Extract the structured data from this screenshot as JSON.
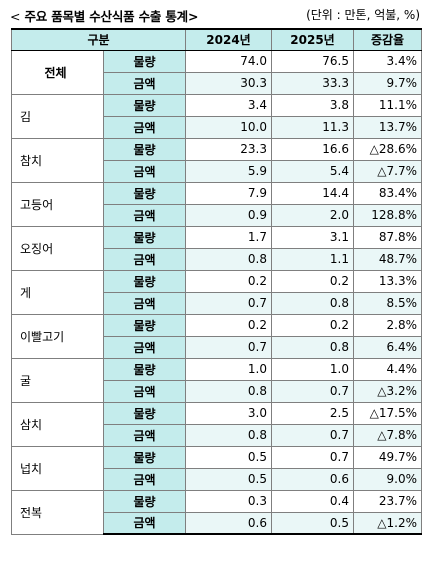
{
  "title": {
    "prefix": "<",
    "text": "주요 품목별 수산식품 수출 통계",
    "suffix": ">",
    "unit": "(단위 : 만톤, 억불, %)"
  },
  "table": {
    "headers": [
      "구분",
      "2024년",
      "2025년",
      "증감율"
    ],
    "rows": [
      {
        "category": "전체",
        "items": [
          {
            "metric": "물량",
            "y2024": "74.0",
            "y2025": "76.5",
            "change": "3.4%"
          },
          {
            "metric": "금액",
            "y2024": "30.3",
            "y2025": "33.3",
            "change": "9.7%"
          }
        ]
      },
      {
        "category": "김",
        "items": [
          {
            "metric": "물량",
            "y2024": "3.4",
            "y2025": "3.8",
            "change": "11.1%"
          },
          {
            "metric": "금액",
            "y2024": "10.0",
            "y2025": "11.3",
            "change": "13.7%"
          }
        ]
      },
      {
        "category": "참치",
        "items": [
          {
            "metric": "물량",
            "y2024": "23.3",
            "y2025": "16.6",
            "change": "△28.6%"
          },
          {
            "metric": "금액",
            "y2024": "5.9",
            "y2025": "5.4",
            "change": "△7.7%"
          }
        ]
      },
      {
        "category": "고등어",
        "items": [
          {
            "metric": "물량",
            "y2024": "7.9",
            "y2025": "14.4",
            "change": "83.4%"
          },
          {
            "metric": "금액",
            "y2024": "0.9",
            "y2025": "2.0",
            "change": "128.8%"
          }
        ]
      },
      {
        "category": "오징어",
        "items": [
          {
            "metric": "물량",
            "y2024": "1.7",
            "y2025": "3.1",
            "change": "87.8%"
          },
          {
            "metric": "금액",
            "y2024": "0.8",
            "y2025": "1.1",
            "change": "48.7%"
          }
        ]
      },
      {
        "category": "게",
        "items": [
          {
            "metric": "물량",
            "y2024": "0.2",
            "y2025": "0.2",
            "change": "13.3%"
          },
          {
            "metric": "금액",
            "y2024": "0.7",
            "y2025": "0.8",
            "change": "8.5%"
          }
        ]
      },
      {
        "category": "이빨고기",
        "items": [
          {
            "metric": "물량",
            "y2024": "0.2",
            "y2025": "0.2",
            "change": "2.8%"
          },
          {
            "metric": "금액",
            "y2024": "0.7",
            "y2025": "0.8",
            "change": "6.4%"
          }
        ]
      },
      {
        "category": "굴",
        "items": [
          {
            "metric": "물량",
            "y2024": "1.0",
            "y2025": "1.0",
            "change": "4.4%"
          },
          {
            "metric": "금액",
            "y2024": "0.8",
            "y2025": "0.7",
            "change": "△3.2%"
          }
        ]
      },
      {
        "category": "삼치",
        "items": [
          {
            "metric": "물량",
            "y2024": "3.0",
            "y2025": "2.5",
            "change": "△17.5%"
          },
          {
            "metric": "금액",
            "y2024": "0.8",
            "y2025": "0.7",
            "change": "△7.8%"
          }
        ]
      },
      {
        "category": "넙치",
        "items": [
          {
            "metric": "물량",
            "y2024": "0.5",
            "y2025": "0.7",
            "change": "49.7%"
          },
          {
            "metric": "금액",
            "y2024": "0.5",
            "y2025": "0.6",
            "change": "9.0%"
          }
        ]
      },
      {
        "category": "전복",
        "items": [
          {
            "metric": "물량",
            "y2024": "0.3",
            "y2025": "0.4",
            "change": "23.7%"
          },
          {
            "metric": "금액",
            "y2024": "0.6",
            "y2025": "0.5",
            "change": "△1.2%"
          }
        ]
      }
    ]
  },
  "colors": {
    "header_bg": "#c4ecec",
    "alt_row_bg": "#eaf7f7"
  }
}
